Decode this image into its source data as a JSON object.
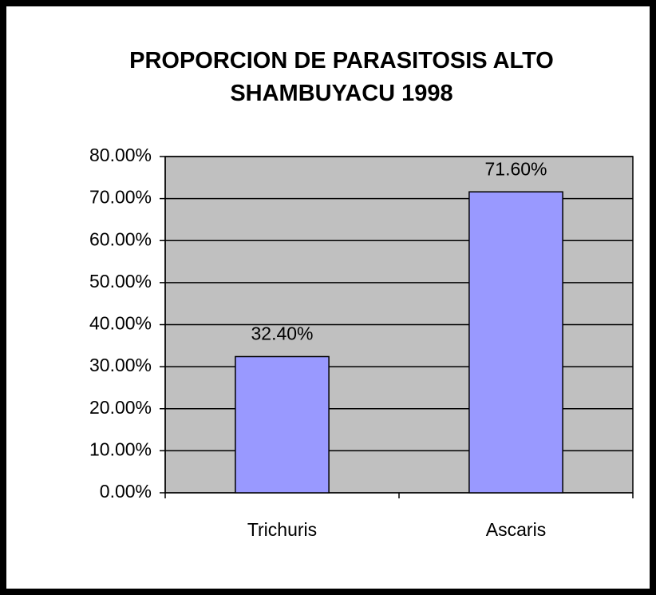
{
  "chart_data": {
    "type": "bar",
    "title": "PROPORCION DE PARASITOSIS ALTO SHAMBUYACU 1998",
    "categories": [
      "Trichuris",
      "Ascaris"
    ],
    "values": [
      32.4,
      71.6
    ],
    "value_labels": [
      "32.40%",
      "71.60%"
    ],
    "color": "#9999ff",
    "ylim": [
      0,
      80
    ],
    "yticks": [
      {
        "value": 0,
        "label": "0.00%"
      },
      {
        "value": 10,
        "label": "10.00%"
      },
      {
        "value": 20,
        "label": "20.00%"
      },
      {
        "value": 30,
        "label": "30.00%"
      },
      {
        "value": 40,
        "label": "40.00%"
      },
      {
        "value": 50,
        "label": "50.00%"
      },
      {
        "value": 60,
        "label": "60.00%"
      },
      {
        "value": 70,
        "label": "70.00%"
      },
      {
        "value": 80,
        "label": "80.00%"
      }
    ],
    "grid": true
  }
}
